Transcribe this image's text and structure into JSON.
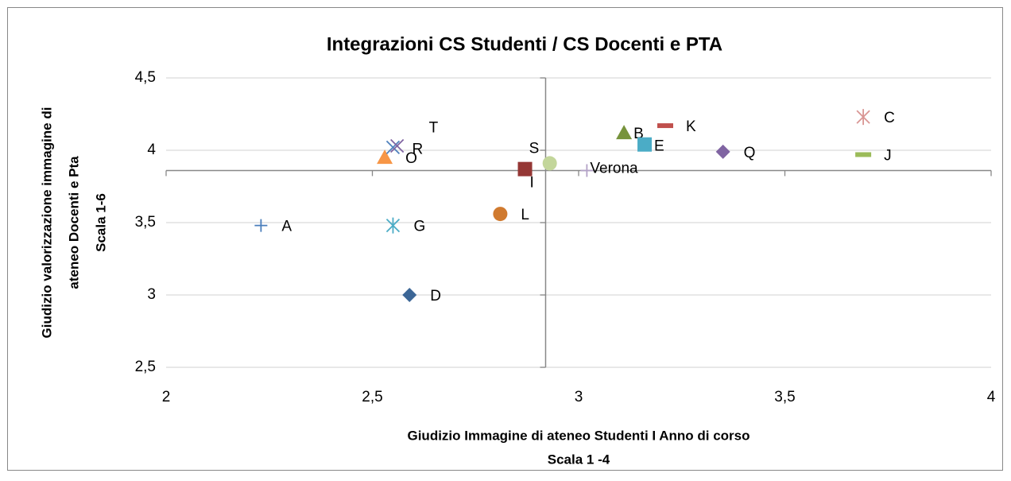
{
  "chart_data": {
    "type": "scatter",
    "title": "Integrazioni CS Studenti / CS Docenti e PTA",
    "xlabel": [
      "Giudizio Immagine di ateneo Studenti I Anno di corso",
      "Scala 1 -4"
    ],
    "ylabel": [
      "Giudizio valorizzazione immagine di",
      "ateneo Docenti e Pta",
      "Scala 1-6"
    ],
    "xlim": [
      2,
      4
    ],
    "xticks": [
      2,
      {
        "value": 2.5,
        "label": "2,5"
      },
      3,
      {
        "value": 3.5,
        "label": "3,5"
      },
      4
    ],
    "ylim": [
      2.5,
      4.5
    ],
    "yticks": [
      {
        "value": 2.5,
        "label": "2,5"
      },
      3,
      {
        "value": 3.5,
        "label": "3,5"
      },
      4,
      {
        "value": 4.5,
        "label": "4,5"
      }
    ],
    "x_cross": 2.92,
    "y_cross": 3.86,
    "grid": true,
    "series": [
      {
        "name": "A",
        "color": "#4a7ebb",
        "marker": "plus",
        "x": [
          2.23
        ],
        "values": [
          3.48
        ]
      },
      {
        "name": "D",
        "color": "#3c6696",
        "marker": "diamond",
        "x": [
          2.59
        ],
        "values": [
          3.0
        ]
      },
      {
        "name": "G",
        "color": "#4bacc6",
        "marker": "asterisk",
        "x": [
          2.55
        ],
        "values": [
          3.48
        ]
      },
      {
        "name": "O",
        "color": "#f79646",
        "marker": "triangle",
        "x": [
          2.53
        ],
        "values": [
          3.95
        ]
      },
      {
        "name": "R",
        "color": "#4f81bd",
        "marker": "cross",
        "x": [
          2.55
        ],
        "values": [
          4.02
        ]
      },
      {
        "name": "T",
        "color": "#8064a2",
        "marker": "cross",
        "x": [
          2.56
        ],
        "values": [
          4.03
        ]
      },
      {
        "name": "L",
        "color": "#d07a2f",
        "marker": "circle",
        "x": [
          2.81
        ],
        "values": [
          3.56
        ]
      },
      {
        "name": "I",
        "color": "#953735",
        "marker": "square",
        "x": [
          2.87
        ],
        "values": [
          3.87
        ]
      },
      {
        "name": "S",
        "color": "#c3d69b",
        "marker": "circle",
        "x": [
          2.93
        ],
        "values": [
          3.91
        ]
      },
      {
        "name": "Verona",
        "color": "#b3a2c7",
        "marker": "plus",
        "x": [
          3.02
        ],
        "values": [
          3.86
        ]
      },
      {
        "name": "B",
        "color": "#77933c",
        "marker": "triangle",
        "x": [
          3.11
        ],
        "values": [
          4.12
        ]
      },
      {
        "name": "E",
        "color": "#4bacc6",
        "marker": "square",
        "x": [
          3.16
        ],
        "values": [
          4.04
        ]
      },
      {
        "name": "K",
        "color": "#c0504d",
        "marker": "dash",
        "x": [
          3.21
        ],
        "values": [
          4.17
        ]
      },
      {
        "name": "Q",
        "color": "#8064a2",
        "marker": "diamond",
        "x": [
          3.35
        ],
        "values": [
          3.99
        ]
      },
      {
        "name": "C",
        "color": "#d99694",
        "marker": "asterisk",
        "x": [
          3.69
        ],
        "values": [
          4.23
        ]
      },
      {
        "name": "J",
        "color": "#9bbb59",
        "marker": "dash",
        "x": [
          3.69
        ],
        "values": [
          3.97
        ]
      }
    ]
  }
}
